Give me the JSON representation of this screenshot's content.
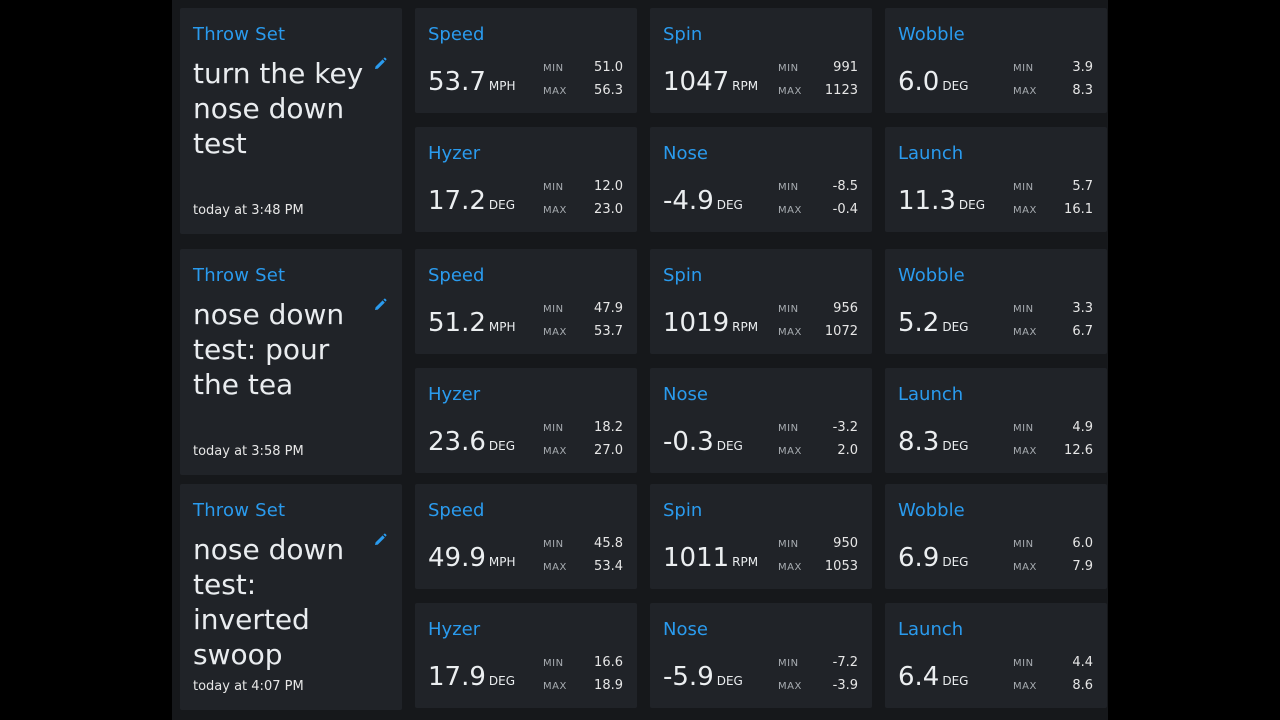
{
  "minmax_labels": {
    "min": "MIN",
    "max": "MAX"
  },
  "throw_sets": [
    {
      "label": "Throw Set",
      "name": "turn the key nose down test",
      "time": "today at 3:48 PM",
      "metrics": {
        "speed": {
          "label": "Speed",
          "value": "53.7",
          "unit": "MPH",
          "min": "51.0",
          "max": "56.3"
        },
        "spin": {
          "label": "Spin",
          "value": "1047",
          "unit": "RPM",
          "min": "991",
          "max": "1123"
        },
        "wobble": {
          "label": "Wobble",
          "value": "6.0",
          "unit": "DEG",
          "min": "3.9",
          "max": "8.3"
        },
        "hyzer": {
          "label": "Hyzer",
          "value": "17.2",
          "unit": "DEG",
          "min": "12.0",
          "max": "23.0"
        },
        "nose": {
          "label": "Nose",
          "value": "-4.9",
          "unit": "DEG",
          "min": "-8.5",
          "max": "-0.4"
        },
        "launch": {
          "label": "Launch",
          "value": "11.3",
          "unit": "DEG",
          "min": "5.7",
          "max": "16.1"
        }
      }
    },
    {
      "label": "Throw Set",
      "name": "nose down test: pour the tea",
      "time": "today at 3:58 PM",
      "metrics": {
        "speed": {
          "label": "Speed",
          "value": "51.2",
          "unit": "MPH",
          "min": "47.9",
          "max": "53.7"
        },
        "spin": {
          "label": "Spin",
          "value": "1019",
          "unit": "RPM",
          "min": "956",
          "max": "1072"
        },
        "wobble": {
          "label": "Wobble",
          "value": "5.2",
          "unit": "DEG",
          "min": "3.3",
          "max": "6.7"
        },
        "hyzer": {
          "label": "Hyzer",
          "value": "23.6",
          "unit": "DEG",
          "min": "18.2",
          "max": "27.0"
        },
        "nose": {
          "label": "Nose",
          "value": "-0.3",
          "unit": "DEG",
          "min": "-3.2",
          "max": "2.0"
        },
        "launch": {
          "label": "Launch",
          "value": "8.3",
          "unit": "DEG",
          "min": "4.9",
          "max": "12.6"
        }
      }
    },
    {
      "label": "Throw Set",
      "name": "nose down test: inverted swoop",
      "time": "today at 4:07 PM",
      "metrics": {
        "speed": {
          "label": "Speed",
          "value": "49.9",
          "unit": "MPH",
          "min": "45.8",
          "max": "53.4"
        },
        "spin": {
          "label": "Spin",
          "value": "1011",
          "unit": "RPM",
          "min": "950",
          "max": "1053"
        },
        "wobble": {
          "label": "Wobble",
          "value": "6.9",
          "unit": "DEG",
          "min": "6.0",
          "max": "7.9"
        },
        "hyzer": {
          "label": "Hyzer",
          "value": "17.9",
          "unit": "DEG",
          "min": "16.6",
          "max": "18.9"
        },
        "nose": {
          "label": "Nose",
          "value": "-5.9",
          "unit": "DEG",
          "min": "-7.2",
          "max": "-3.9"
        },
        "launch": {
          "label": "Launch",
          "value": "6.4",
          "unit": "DEG",
          "min": "4.4",
          "max": "8.6"
        }
      }
    }
  ],
  "colors": {
    "accent": "#2a9bee",
    "card_background": "#202328",
    "panel_background": "#16181b",
    "text": "#e9ecef"
  },
  "icons": {
    "edit": "pencil-icon"
  }
}
